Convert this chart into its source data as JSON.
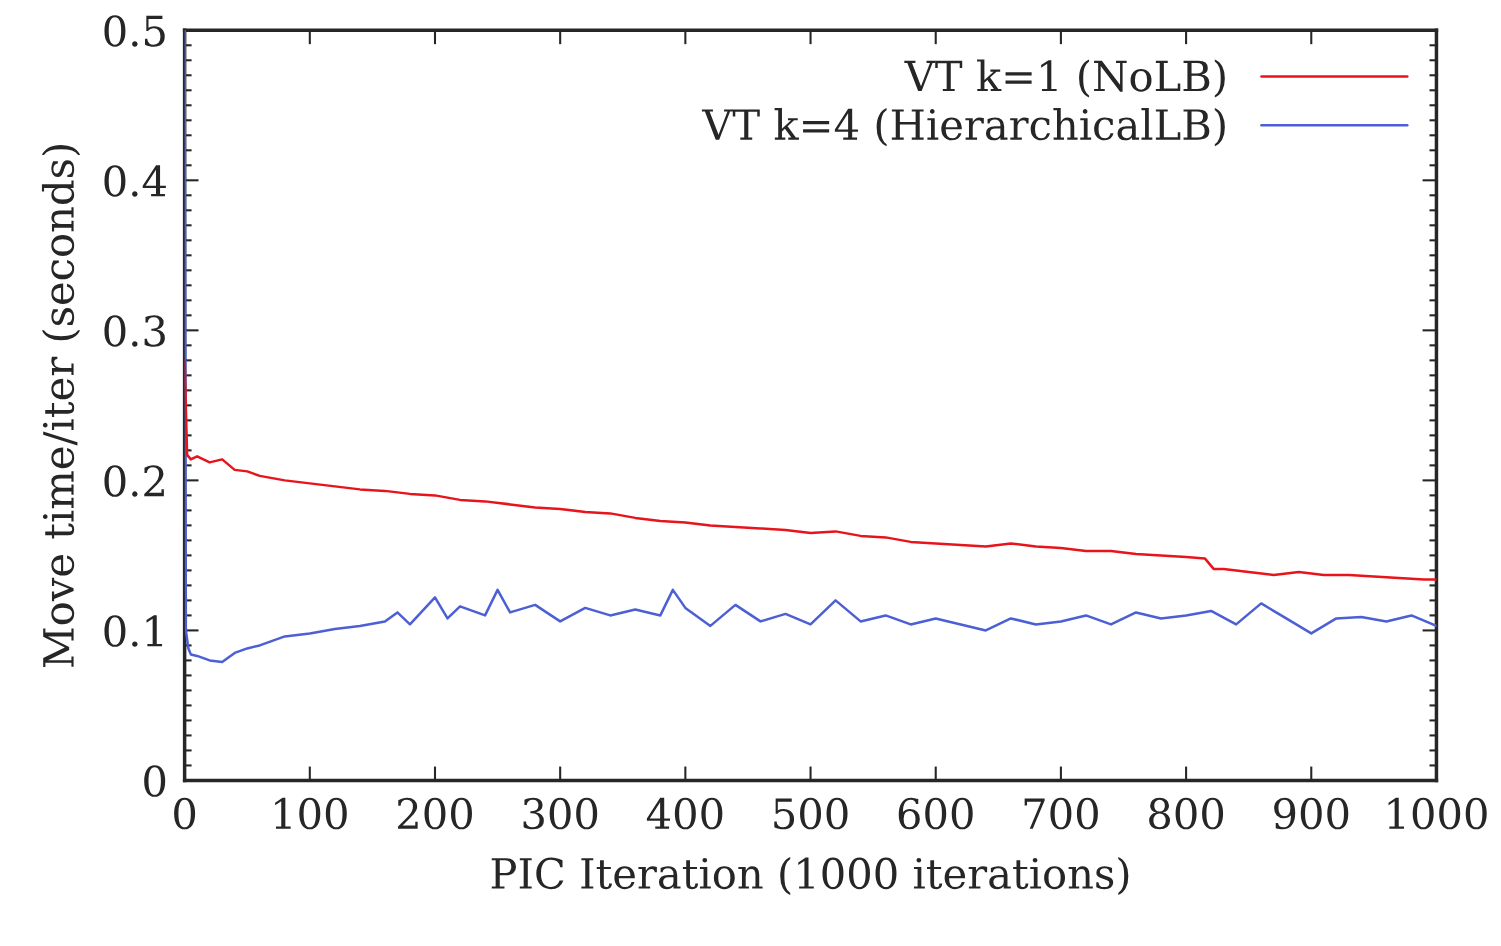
{
  "chart_data": {
    "type": "line",
    "xlabel": "PIC Iteration (1000 iterations)",
    "ylabel": "Move time/iter (seconds)",
    "xlim": [
      0,
      1000
    ],
    "xticks": [
      0,
      100,
      200,
      300,
      400,
      500,
      600,
      700,
      800,
      900,
      1000
    ],
    "ylim": [
      0,
      0.5
    ],
    "yticks": [
      0,
      0.1,
      0.2,
      0.3,
      0.4,
      0.5
    ],
    "grid": false,
    "legend": "top right",
    "marker": "none",
    "line_style": "solid",
    "series": [
      {
        "name": "VT k=1 (NoLB)",
        "color": "#e8141b",
        "x": [
          0,
          2,
          5,
          10,
          20,
          30,
          40,
          50,
          60,
          80,
          100,
          120,
          140,
          160,
          180,
          200,
          220,
          240,
          260,
          280,
          300,
          320,
          340,
          360,
          380,
          400,
          420,
          440,
          460,
          480,
          500,
          520,
          540,
          560,
          580,
          600,
          620,
          640,
          660,
          680,
          700,
          720,
          740,
          760,
          780,
          800,
          815,
          822,
          830,
          850,
          870,
          890,
          910,
          930,
          950,
          970,
          990,
          1000
        ],
        "values": [
          0.28,
          0.217,
          0.214,
          0.216,
          0.212,
          0.214,
          0.207,
          0.206,
          0.203,
          0.2,
          0.198,
          0.196,
          0.194,
          0.193,
          0.191,
          0.19,
          0.187,
          0.186,
          0.184,
          0.182,
          0.181,
          0.179,
          0.178,
          0.175,
          0.173,
          0.172,
          0.17,
          0.169,
          0.168,
          0.167,
          0.165,
          0.166,
          0.163,
          0.162,
          0.159,
          0.158,
          0.157,
          0.156,
          0.158,
          0.156,
          0.155,
          0.153,
          0.153,
          0.151,
          0.15,
          0.149,
          0.148,
          0.141,
          0.141,
          0.139,
          0.137,
          0.139,
          0.137,
          0.137,
          0.136,
          0.135,
          0.134,
          0.134
        ]
      },
      {
        "name": "VT k=4 (HierarchicalLB)",
        "color": "#4c5fd5",
        "x": [
          0,
          1,
          3,
          5,
          10,
          20,
          30,
          40,
          50,
          60,
          70,
          80,
          90,
          100,
          120,
          140,
          160,
          170,
          180,
          200,
          210,
          220,
          240,
          250,
          260,
          280,
          300,
          320,
          340,
          360,
          380,
          390,
          400,
          420,
          440,
          460,
          480,
          500,
          520,
          540,
          560,
          580,
          600,
          620,
          640,
          660,
          680,
          700,
          720,
          740,
          760,
          780,
          800,
          820,
          840,
          860,
          880,
          900,
          920,
          940,
          960,
          980,
          1000
        ],
        "values": [
          0.5,
          0.1,
          0.088,
          0.084,
          0.083,
          0.08,
          0.079,
          0.085,
          0.088,
          0.09,
          0.093,
          0.096,
          0.097,
          0.098,
          0.101,
          0.103,
          0.106,
          0.112,
          0.104,
          0.122,
          0.108,
          0.116,
          0.11,
          0.127,
          0.112,
          0.117,
          0.106,
          0.115,
          0.11,
          0.114,
          0.11,
          0.127,
          0.115,
          0.103,
          0.117,
          0.106,
          0.111,
          0.104,
          0.12,
          0.106,
          0.11,
          0.104,
          0.108,
          0.104,
          0.1,
          0.108,
          0.104,
          0.106,
          0.11,
          0.104,
          0.112,
          0.108,
          0.11,
          0.113,
          0.104,
          0.118,
          0.108,
          0.098,
          0.108,
          0.109,
          0.106,
          0.11,
          0.103
        ]
      }
    ]
  }
}
